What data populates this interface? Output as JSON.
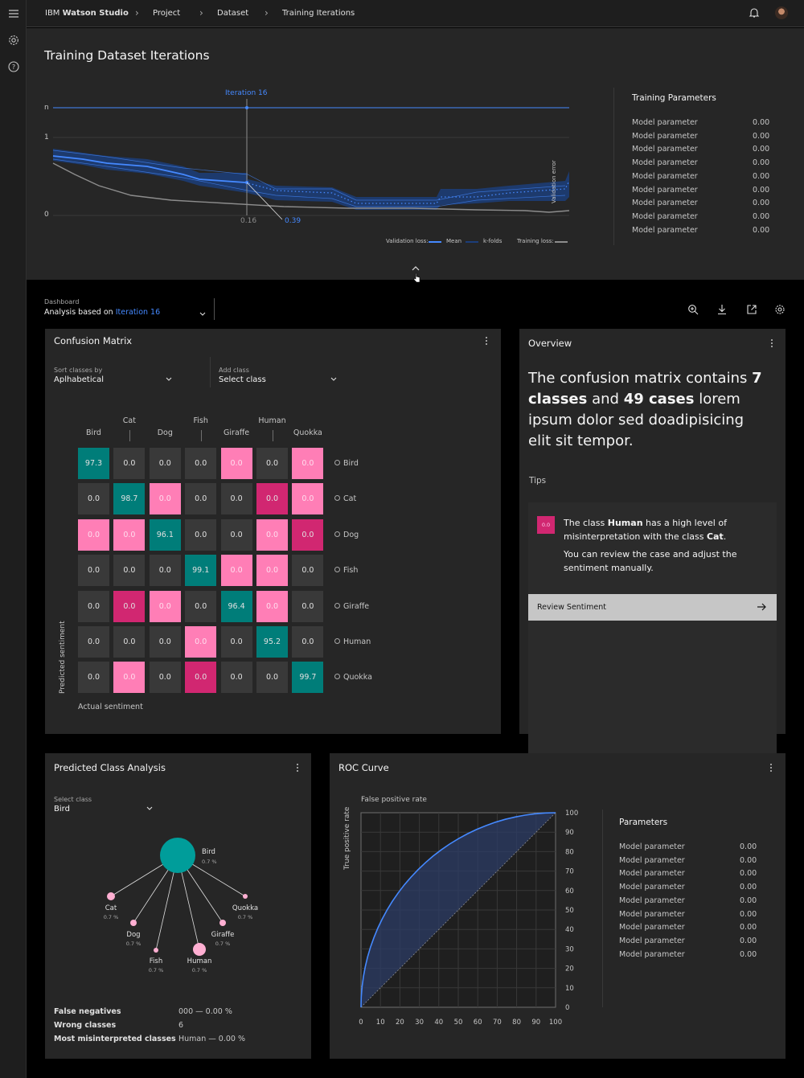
{
  "header": {
    "brand_light": "IBM",
    "brand_bold": "Watson Studio",
    "breadcrumb": [
      "Project",
      "Dataset",
      "Training Iterations"
    ]
  },
  "training": {
    "title": "Training Dataset Iterations",
    "iteration_label": "Iteration 16",
    "y_ticks": [
      "n",
      "1",
      "0"
    ],
    "marker_x": "0.16",
    "marker_value": "0.39",
    "y_axis_label": "Validation error",
    "legend": {
      "validation_loss": "Validation loss:",
      "mean": "Mean",
      "kfolds": "k-folds",
      "training_loss": "Training loss:"
    },
    "params_title": "Training Parameters",
    "params": [
      {
        "name": "Model parameter",
        "value": "0.00"
      },
      {
        "name": "Model parameter",
        "value": "0.00"
      },
      {
        "name": "Model parameter",
        "value": "0.00"
      },
      {
        "name": "Model parameter",
        "value": "0.00"
      },
      {
        "name": "Model parameter",
        "value": "0.00"
      },
      {
        "name": "Model parameter",
        "value": "0.00"
      },
      {
        "name": "Model parameter",
        "value": "0.00"
      },
      {
        "name": "Model parameter",
        "value": "0.00"
      },
      {
        "name": "Model parameter",
        "value": "0.00"
      }
    ]
  },
  "dashboard": {
    "label": "Dashboard",
    "analysis_prefix": "Analysis based on",
    "analysis_iteration": "Iteration 16"
  },
  "confusion": {
    "title": "Confusion Matrix",
    "sort_label": "Sort classes by",
    "sort_value": "Aplhabetical",
    "add_label": "Add class",
    "add_value": "Select class",
    "columns": [
      "Bird",
      "Cat",
      "Dog",
      "Fish",
      "Giraffe",
      "Human",
      "Quokka"
    ],
    "rows": [
      "Bird",
      "Cat",
      "Dog",
      "Fish",
      "Giraffe",
      "Human",
      "Quokka"
    ],
    "values": [
      [
        "97.3",
        "0.0",
        "0.0",
        "0.0",
        "0.0",
        "0.0",
        "0.0"
      ],
      [
        "0.0",
        "98.7",
        "0.0",
        "0.0",
        "0.0",
        "0.0",
        "0.0"
      ],
      [
        "0.0",
        "0.0",
        "96.1",
        "0.0",
        "0.0",
        "0.0",
        "0.0"
      ],
      [
        "0.0",
        "0.0",
        "0.0",
        "99.1",
        "0.0",
        "0.0",
        "0.0"
      ],
      [
        "0.0",
        "0.0",
        "0.0",
        "0.0",
        "96.4",
        "0.0",
        "0.0"
      ],
      [
        "0.0",
        "0.0",
        "0.0",
        "0.0",
        "0.0",
        "95.2",
        "0.0"
      ],
      [
        "0.0",
        "0.0",
        "0.0",
        "0.0",
        "0.0",
        "0.0",
        "99.7"
      ]
    ],
    "cell_types": [
      [
        "d",
        "g",
        "g",
        "g",
        "l",
        "g",
        "l"
      ],
      [
        "g",
        "d",
        "l",
        "g",
        "g",
        "m",
        "l"
      ],
      [
        "l",
        "l",
        "d",
        "g",
        "g",
        "l",
        "m"
      ],
      [
        "g",
        "g",
        "g",
        "d",
        "l",
        "l",
        "g"
      ],
      [
        "g",
        "m",
        "l",
        "g",
        "d",
        "l",
        "g"
      ],
      [
        "g",
        "g",
        "g",
        "l",
        "g",
        "d",
        "g"
      ],
      [
        "g",
        "l",
        "g",
        "m",
        "g",
        "g",
        "d"
      ]
    ],
    "colors": {
      "d": "#007d79",
      "g": "#393939",
      "l": "#ff7eb6",
      "m": "#d12771"
    },
    "y_label": "Predicted sentiment",
    "x_label": "Actual sentiment"
  },
  "overview": {
    "title": "Overview",
    "text_1": "The confusion matrix contains",
    "bold_classes": "7 classes",
    "text_and": "and",
    "bold_cases": "49 cases",
    "text_2": "lorem ipsum dolor sed doadipisicing elit sit tempor.",
    "tips_label": "Tips",
    "tip_badge": "0.0",
    "tip_1a": "The class",
    "tip_1b": "Human",
    "tip_1c": "has a high level of misinterpretation with the class",
    "tip_1d": "Cat",
    "tip_2": "You can review the case and adjust the sentiment manually.",
    "review_button": "Review Sentiment"
  },
  "predicted": {
    "title": "Predicted Class Analysis",
    "select_label": "Select class",
    "select_value": "Bird",
    "center": {
      "name": "Bird",
      "pct": "0.7 %"
    },
    "nodes": [
      {
        "name": "Cat",
        "pct": "0.7 %"
      },
      {
        "name": "Dog",
        "pct": "0.7 %"
      },
      {
        "name": "Fish",
        "pct": "0.7 %"
      },
      {
        "name": "Human",
        "pct": "0.7 %"
      },
      {
        "name": "Giraffe",
        "pct": "0.7 %"
      },
      {
        "name": "Quokka",
        "pct": "0.7 %"
      }
    ],
    "stats": [
      {
        "label": "False negatives",
        "value": "000 — 0.00 %"
      },
      {
        "label": "Wrong classes",
        "value": "6"
      },
      {
        "label": "Most misinterpreted classes",
        "value": "Human — 0.00 %"
      }
    ]
  },
  "roc": {
    "title": "ROC Curve",
    "x_label": "False positive rate",
    "y_label": "True positive rate",
    "x_ticks": [
      "0",
      "10",
      "20",
      "30",
      "40",
      "50",
      "60",
      "70",
      "80",
      "90",
      "100"
    ],
    "y_ticks": [
      "100",
      "90",
      "80",
      "70",
      "60",
      "50",
      "40",
      "30",
      "20",
      "10",
      "0"
    ],
    "params_title": "Parameters",
    "params": [
      {
        "name": "Model parameter",
        "value": "0.00"
      },
      {
        "name": "Model parameter",
        "value": "0.00"
      },
      {
        "name": "Model parameter",
        "value": "0.00"
      },
      {
        "name": "Model parameter",
        "value": "0.00"
      },
      {
        "name": "Model parameter",
        "value": "0.00"
      },
      {
        "name": "Model parameter",
        "value": "0.00"
      },
      {
        "name": "Model parameter",
        "value": "0.00"
      },
      {
        "name": "Model parameter",
        "value": "0.00"
      },
      {
        "name": "Model parameter",
        "value": "0.00"
      }
    ]
  }
}
